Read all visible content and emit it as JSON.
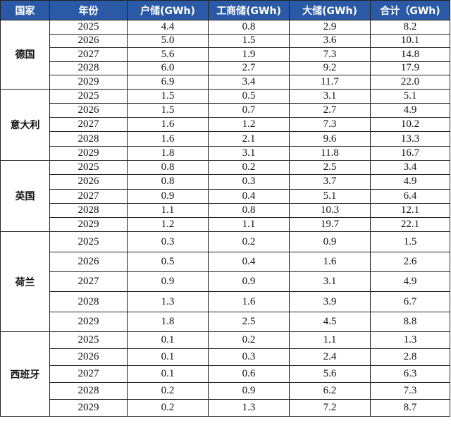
{
  "table": {
    "header": [
      "国家",
      "年份",
      "户储(GWh)",
      "工商储(GWh)",
      "大储(GWh)",
      "合计（GWh)"
    ],
    "groups": [
      {
        "country": "德国",
        "rows": [
          [
            "2025",
            "4.4",
            "0.8",
            "2.9",
            "8.2"
          ],
          [
            "2026",
            "5.0",
            "1.5",
            "3.6",
            "10.1"
          ],
          [
            "2027",
            "5.6",
            "1.9",
            "7.3",
            "14.8"
          ],
          [
            "2028",
            "6.0",
            "2.7",
            "9.2",
            "17.9"
          ],
          [
            "2029",
            "6.9",
            "3.4",
            "11.7",
            "22.0"
          ]
        ]
      },
      {
        "country": "意大利",
        "rows": [
          [
            "2025",
            "1.5",
            "0.5",
            "3.1",
            "5.1"
          ],
          [
            "2026",
            "1.5",
            "0.7",
            "2.7",
            "4.9"
          ],
          [
            "2027",
            "1.6",
            "1.2",
            "7.3",
            "10.2"
          ],
          [
            "2028",
            "1.6",
            "2.1",
            "9.6",
            "13.3"
          ],
          [
            "2029",
            "1.8",
            "3.1",
            "11.8",
            "16.7"
          ]
        ]
      },
      {
        "country": "英国",
        "rows": [
          [
            "2025",
            "0.8",
            "0.2",
            "2.5",
            "3.4"
          ],
          [
            "2026",
            "0.8",
            "0.3",
            "3.7",
            "4.9"
          ],
          [
            "2027",
            "0.9",
            "0.4",
            "5.1",
            "6.4"
          ],
          [
            "2028",
            "1.1",
            "0.8",
            "10.3",
            "12.1"
          ],
          [
            "2029",
            "1.2",
            "1.1",
            "19.7",
            "22.1"
          ]
        ]
      },
      {
        "country": "荷兰",
        "rows": [
          [
            "2025",
            "0.3",
            "0.2",
            "0.9",
            "1.5"
          ],
          [
            "2026",
            "0.5",
            "0.4",
            "1.6",
            "2.6"
          ],
          [
            "2027",
            "0.9",
            "0.9",
            "3.1",
            "4.9"
          ],
          [
            "2028",
            "1.3",
            "1.6",
            "3.9",
            "6.7"
          ],
          [
            "2029",
            "1.8",
            "2.5",
            "4.5",
            "8.8"
          ]
        ]
      },
      {
        "country": "西班牙",
        "rows": [
          [
            "2025",
            "0.1",
            "0.2",
            "1.1",
            "1.3"
          ],
          [
            "2026",
            "0.1",
            "0.3",
            "2.4",
            "2.8"
          ],
          [
            "2027",
            "0.1",
            "0.6",
            "5.6",
            "6.3"
          ],
          [
            "2028",
            "0.2",
            "0.9",
            "6.2",
            "7.3"
          ],
          [
            "2029",
            "0.2",
            "1.3",
            "7.2",
            "8.7"
          ]
        ]
      }
    ]
  }
}
